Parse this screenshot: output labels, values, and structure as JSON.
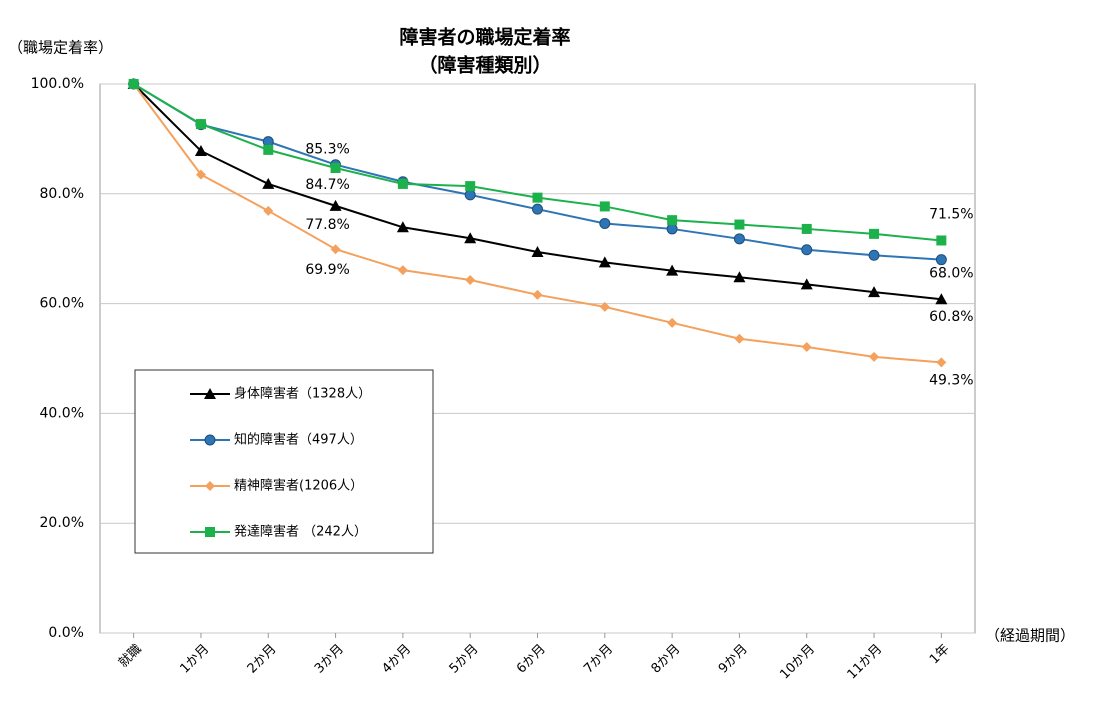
{
  "chart_data": {
    "type": "line",
    "title": "障害者の職場定着率",
    "subtitle": "（障害種類別）",
    "y_label": "（職場定着率）",
    "x_label": "（経過期間）",
    "categories": [
      "就職",
      "1か月",
      "2か月",
      "3か月",
      "4か月",
      "5か月",
      "6か月",
      "7か月",
      "8か月",
      "9か月",
      "10か月",
      "11か月",
      "1年"
    ],
    "ylim": [
      0,
      100
    ],
    "yticks": [
      {
        "value": 0,
        "label": "0.0%"
      },
      {
        "value": 20,
        "label": "20.0%"
      },
      {
        "value": 40,
        "label": "40.0%"
      },
      {
        "value": 60,
        "label": "60.0%"
      },
      {
        "value": 80,
        "label": "80.0%"
      },
      {
        "value": 100,
        "label": "100.0%"
      }
    ],
    "grid": true,
    "series": [
      {
        "name": "身体障害者（1328人）",
        "color": "#000000",
        "marker": "triangle",
        "values": [
          100,
          87.8,
          81.8,
          77.8,
          73.9,
          71.9,
          69.4,
          67.5,
          66.0,
          64.8,
          63.5,
          62.1,
          60.8
        ],
        "value_labels": [
          null,
          null,
          null,
          "77.8%",
          null,
          null,
          null,
          null,
          null,
          null,
          null,
          null,
          "60.8%"
        ]
      },
      {
        "name": "知的障害者（497人）",
        "color": "#2e75b6",
        "marker": "circle",
        "values": [
          100,
          92.6,
          89.5,
          85.3,
          82.2,
          79.8,
          77.2,
          74.6,
          73.6,
          71.8,
          69.8,
          68.8,
          68.0
        ],
        "value_labels": [
          null,
          null,
          null,
          "85.3%",
          null,
          null,
          null,
          null,
          null,
          null,
          null,
          null,
          "68.0%"
        ]
      },
      {
        "name": "精神障害者(1206人）",
        "color": "#f4a15d",
        "marker": "diamond",
        "values": [
          100,
          83.5,
          76.9,
          69.9,
          66.1,
          64.3,
          61.6,
          59.4,
          56.5,
          53.6,
          52.1,
          50.3,
          49.3
        ],
        "value_labels": [
          null,
          null,
          null,
          "69.9%",
          null,
          null,
          null,
          null,
          null,
          null,
          null,
          null,
          "49.3%"
        ]
      },
      {
        "name": "発達障害者 （242人）",
        "color": "#1db14b",
        "marker": "square",
        "values": [
          100,
          92.7,
          88.0,
          84.7,
          81.8,
          81.4,
          79.3,
          77.7,
          75.2,
          74.4,
          73.6,
          72.7,
          71.5
        ],
        "value_labels": [
          null,
          null,
          null,
          "84.7%",
          null,
          null,
          null,
          null,
          null,
          null,
          null,
          null,
          "71.5%"
        ]
      }
    ]
  }
}
